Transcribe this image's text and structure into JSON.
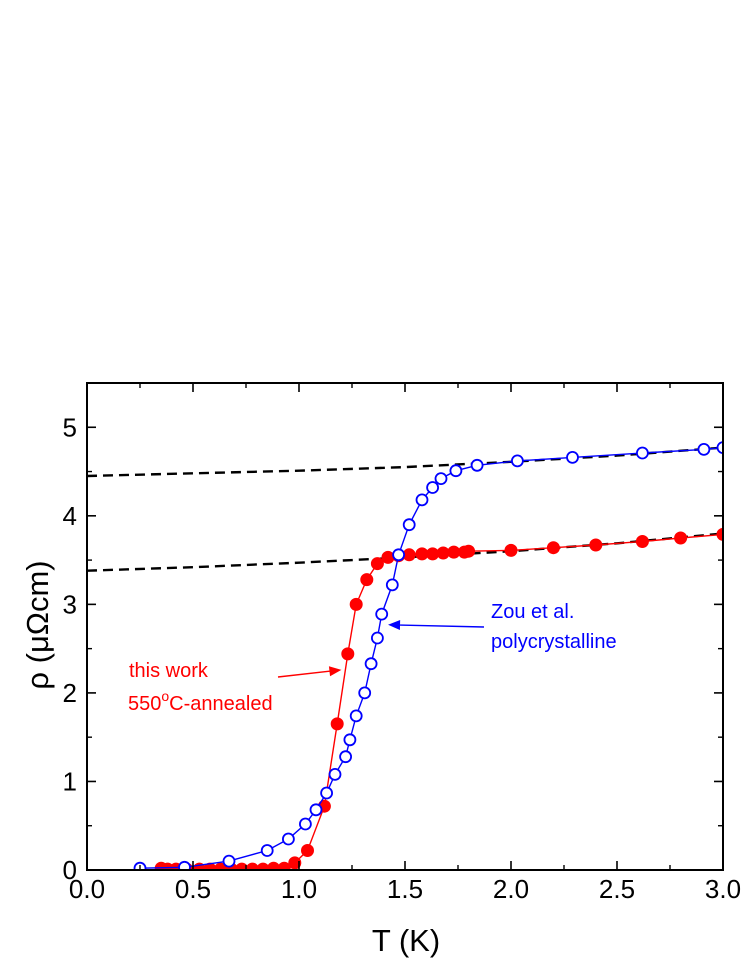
{
  "chart_data": {
    "type": "line",
    "xlabel": "T (K)",
    "ylabel": "ρ (μΩcm)",
    "xlim": [
      0.0,
      3.0
    ],
    "ylim": [
      0,
      5.5
    ],
    "xticks": [
      "0.0",
      "0.5",
      "1.0",
      "1.5",
      "2.0",
      "2.5",
      "3.0"
    ],
    "yticks": [
      "0",
      "1",
      "2",
      "3",
      "4",
      "5"
    ],
    "grid": false,
    "legend": "none",
    "series": [
      {
        "color": "#ff0000",
        "marker": "filled-circle",
        "points": [
          [
            0.35,
            0.02
          ],
          [
            0.38,
            0.01
          ],
          [
            0.42,
            0.01
          ],
          [
            0.47,
            0.01
          ],
          [
            0.53,
            0.01
          ],
          [
            0.58,
            0.01
          ],
          [
            0.63,
            0.01
          ],
          [
            0.68,
            0.01
          ],
          [
            0.73,
            0.01
          ],
          [
            0.78,
            0.01
          ],
          [
            0.83,
            0.01
          ],
          [
            0.88,
            0.02
          ],
          [
            0.93,
            0.02
          ],
          [
            0.98,
            0.08
          ],
          [
            1.04,
            0.22
          ],
          [
            1.12,
            0.72
          ],
          [
            1.18,
            1.65
          ],
          [
            1.23,
            2.44
          ],
          [
            1.27,
            3.0
          ],
          [
            1.32,
            3.28
          ],
          [
            1.37,
            3.46
          ],
          [
            1.42,
            3.53
          ],
          [
            1.47,
            3.55
          ],
          [
            1.52,
            3.56
          ],
          [
            1.58,
            3.57
          ],
          [
            1.63,
            3.57
          ],
          [
            1.68,
            3.58
          ],
          [
            1.73,
            3.59
          ],
          [
            1.78,
            3.59
          ],
          [
            1.8,
            3.6
          ],
          [
            2.0,
            3.61
          ],
          [
            2.2,
            3.64
          ],
          [
            2.4,
            3.67
          ],
          [
            2.62,
            3.71
          ],
          [
            2.8,
            3.75
          ],
          [
            3.0,
            3.79
          ]
        ]
      },
      {
        "color": "#0000ff",
        "marker": "open-circle",
        "points": [
          [
            0.25,
            0.02
          ],
          [
            0.46,
            0.03
          ],
          [
            0.67,
            0.1
          ],
          [
            0.85,
            0.22
          ],
          [
            0.95,
            0.35
          ],
          [
            1.03,
            0.52
          ],
          [
            1.08,
            0.68
          ],
          [
            1.13,
            0.87
          ],
          [
            1.17,
            1.08
          ],
          [
            1.22,
            1.28
          ],
          [
            1.24,
            1.47
          ],
          [
            1.27,
            1.74
          ],
          [
            1.31,
            2.0
          ],
          [
            1.34,
            2.33
          ],
          [
            1.37,
            2.62
          ],
          [
            1.39,
            2.89
          ],
          [
            1.44,
            3.22
          ],
          [
            1.47,
            3.56
          ],
          [
            1.52,
            3.9
          ],
          [
            1.58,
            4.18
          ],
          [
            1.63,
            4.32
          ],
          [
            1.67,
            4.42
          ],
          [
            1.74,
            4.51
          ],
          [
            1.84,
            4.57
          ],
          [
            2.03,
            4.62
          ],
          [
            2.29,
            4.66
          ],
          [
            2.62,
            4.71
          ],
          [
            2.91,
            4.75
          ],
          [
            3.0,
            4.77
          ]
        ]
      }
    ],
    "fits": [
      {
        "style": "dashed",
        "color": "#000000",
        "points": [
          [
            0.0,
            3.38
          ],
          [
            0.5,
            3.42
          ],
          [
            1.0,
            3.47
          ],
          [
            1.5,
            3.53
          ],
          [
            2.0,
            3.6
          ],
          [
            2.5,
            3.69
          ],
          [
            3.0,
            3.8
          ]
        ]
      },
      {
        "style": "dashed",
        "color": "#000000",
        "points": [
          [
            0.0,
            4.45
          ],
          [
            0.5,
            4.48
          ],
          [
            1.0,
            4.51
          ],
          [
            1.5,
            4.55
          ],
          [
            2.0,
            4.61
          ],
          [
            2.5,
            4.68
          ],
          [
            3.0,
            4.77
          ]
        ]
      }
    ],
    "annotations": [
      {
        "lines": [
          "this work",
          "550",
          "o",
          "C-annealed"
        ],
        "color": "#ff0000",
        "arrow_to": [
          1.2,
          2.26
        ]
      },
      {
        "lines": [
          "Zou et al.",
          "polycrystalline"
        ],
        "color": "#0000ff",
        "arrow_to": [
          1.42,
          2.77
        ]
      }
    ]
  }
}
